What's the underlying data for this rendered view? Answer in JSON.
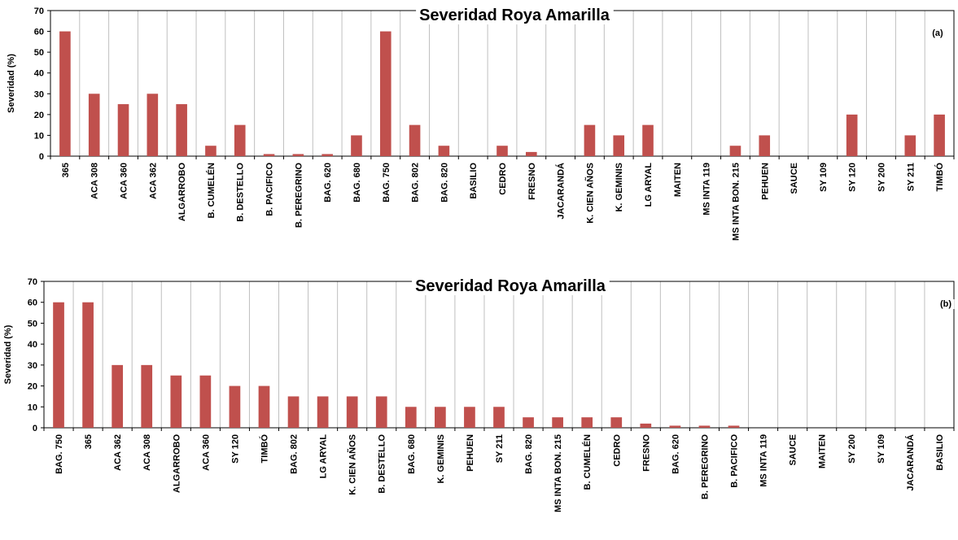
{
  "colors": {
    "bar": "#c0504d",
    "grid": "#bfbfbf",
    "axis": "#000000",
    "background": "#ffffff"
  },
  "chart_data": [
    {
      "type": "bar",
      "title": "Severidad Roya Amarilla",
      "panel_label": "(a)",
      "xlabel": "",
      "ylabel": "Severidad (%)",
      "ylim": [
        0,
        70
      ],
      "yticks": [
        0,
        10,
        20,
        30,
        40,
        50,
        60,
        70
      ],
      "grid": "vertical",
      "legend": "none",
      "categories": [
        "365",
        "ACA 308",
        "ACA 360",
        "ACA 362",
        "ALGARROBO",
        "B. CUMELÉN",
        "B. DESTELLO",
        "B. PACIFICO",
        "B. PEREGRINO",
        "BAG. 620",
        "BAG. 680",
        "BAG. 750",
        "BAG. 802",
        "BAG. 820",
        "BASILIO",
        "CEDRO",
        "FRESNO",
        "JACARANDÁ",
        "K. CIEN AÑOS",
        "K. GEMINIS",
        "LG ARYAL",
        "MAITEN",
        "MS INTA 119",
        "MS INTA BON. 215",
        "PEHUEN",
        "SAUCE",
        "SY 109",
        "SY 120",
        "SY 200",
        "SY 211",
        "TIMBÓ"
      ],
      "values": [
        60,
        30,
        25,
        30,
        25,
        5,
        15,
        1,
        1,
        1,
        10,
        60,
        15,
        5,
        0,
        5,
        2,
        0,
        15,
        10,
        15,
        0,
        0,
        5,
        10,
        0,
        0,
        20,
        0,
        10,
        20
      ]
    },
    {
      "type": "bar",
      "title": "Severidad Roya Amarilla",
      "panel_label": "(b)",
      "xlabel": "",
      "ylabel": "Severidad (%)",
      "ylim": [
        0,
        70
      ],
      "yticks": [
        0,
        10,
        20,
        30,
        40,
        50,
        60,
        70
      ],
      "grid": "vertical",
      "legend": "none",
      "categories": [
        "BAG. 750",
        "365",
        "ACA 362",
        "ACA 308",
        "ALGARROBO",
        "ACA 360",
        "SY 120",
        "TIMBÓ",
        "BAG. 802",
        "LG ARYAL",
        "K. CIEN AÑOS",
        "B. DESTELLO",
        "BAG. 680",
        "K. GEMINIS",
        "PEHUEN",
        "SY 211",
        "BAG. 820",
        "MS INTA BON. 215",
        "B. CUMELÉN",
        "CEDRO",
        "FRESNO",
        "BAG. 620",
        "B. PEREGRINO",
        "B. PACIFICO",
        "MS INTA 119",
        "SAUCE",
        "MAITEN",
        "SY 200",
        "SY 109",
        "JACARANDÁ",
        "BASILIO"
      ],
      "values": [
        60,
        60,
        30,
        30,
        25,
        25,
        20,
        20,
        15,
        15,
        15,
        15,
        10,
        10,
        10,
        10,
        5,
        5,
        5,
        5,
        2,
        1,
        1,
        1,
        0,
        0,
        0,
        0,
        0,
        0,
        0
      ]
    }
  ]
}
